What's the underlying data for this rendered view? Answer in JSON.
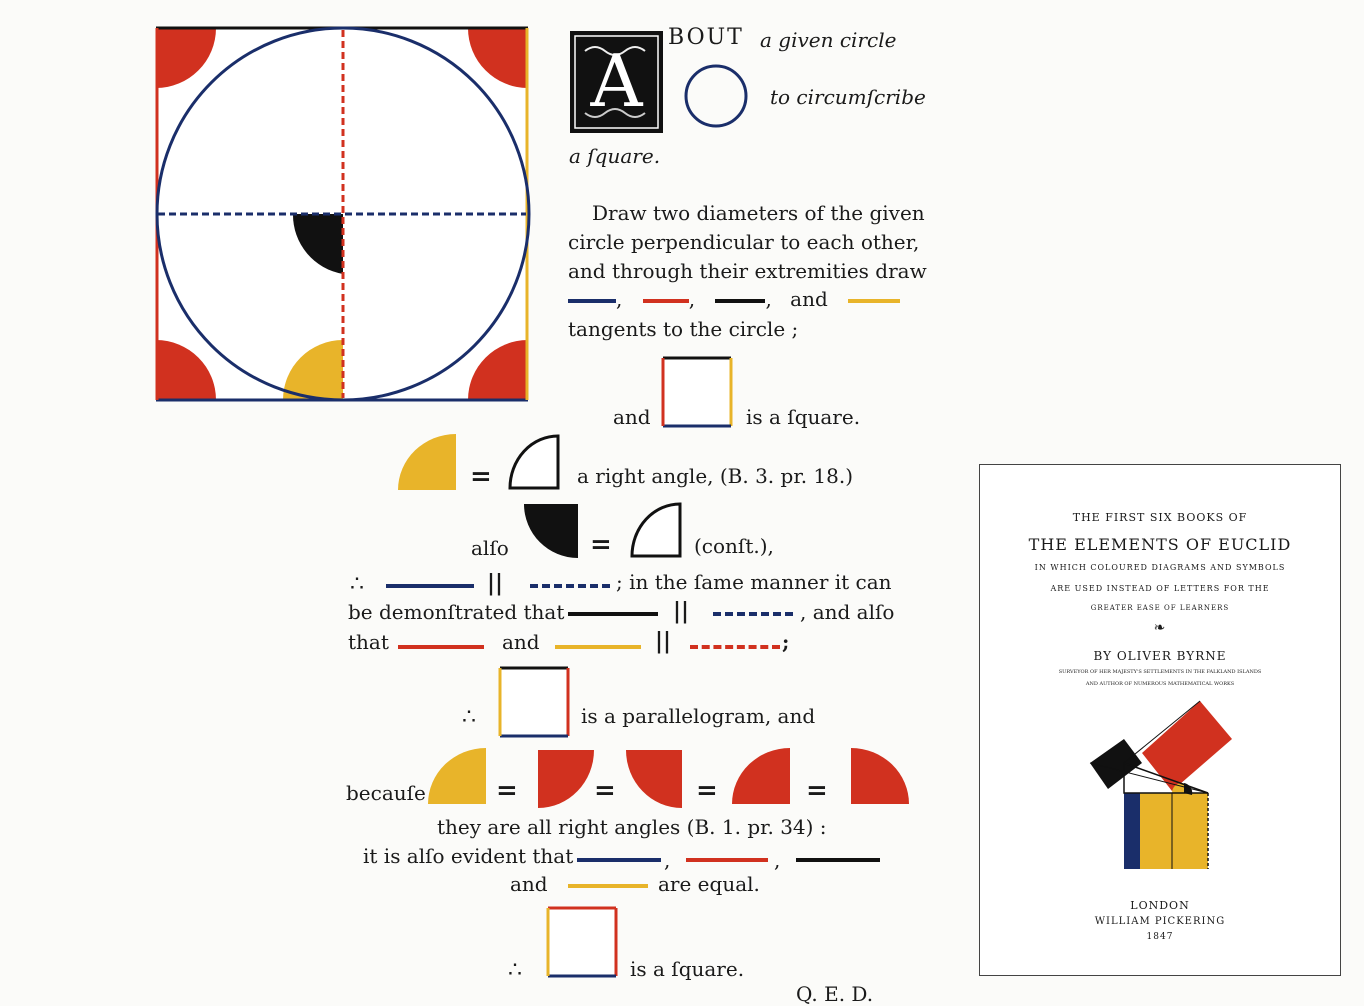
{
  "colors": {
    "red": "#d1311f",
    "blue": "#1a2e6a",
    "yellow": "#e8b42a",
    "black": "#111111"
  },
  "icons": {
    "initial": "decorated-initial-A",
    "quarter_yellow": "yellow-quadrant-icon",
    "quarter_black": "black-quadrant-icon",
    "quarter_red": "red-quadrant-icon",
    "right_angle": "outlined-right-angle-icon",
    "ornament": "fleuron-icon"
  },
  "heading": {
    "initial": "A",
    "word_rest": "BOUT",
    "line1_rest": "a given circle",
    "line2": "to circumſcribe",
    "line3": "a ſquare."
  },
  "text": {
    "p1_l1": "Draw two diameters of the given",
    "p1_l2": "circle perpendicular to each other,",
    "p1_l3": "and through their extremities draw",
    "comma": ",",
    "and": "and",
    "p1_l5": "tangents to the circle ;",
    "is_square": "is a ſquare.",
    "right_angle": "a right angle, (B. 3. pr. 18.)",
    "also": "alſo",
    "const": "(conſt.),",
    "therefore": "∴",
    "parallel": "||",
    "same_manner": "; in the ſame manner it can",
    "demonstrated": "be demonſtrated that",
    "and_also": ", and alſo",
    "that": "that",
    "semicolon": ";",
    "equals": "=",
    "parallelogram": "is a parallelogram, and",
    "because": "becauſe",
    "right_angles": "they are all right angles (B. 1. pr. 34) :",
    "evident": "it is alſo evident that",
    "are_equal": "are equal.",
    "qed": "Q. E. D."
  },
  "cover": {
    "line1": "THE FIRST SIX BOOKS OF",
    "title": "THE ELEMENTS OF EUCLID",
    "sub1": "IN WHICH COLOURED DIAGRAMS AND SYMBOLS",
    "sub2": "ARE USED INSTEAD OF LETTERS FOR THE",
    "sub3": "GREATER EASE OF LEARNERS",
    "ornament": "❧",
    "author": "BY OLIVER BYRNE",
    "cred1": "SURVEYOR OF HER MAJESTY'S SETTLEMENTS IN THE FALKLAND ISLANDS",
    "cred2": "AND AUTHOR OF NUMEROUS MATHEMATICAL WORKS",
    "city": "LONDON",
    "publisher": "WILLIAM PICKERING",
    "year": "1847"
  }
}
